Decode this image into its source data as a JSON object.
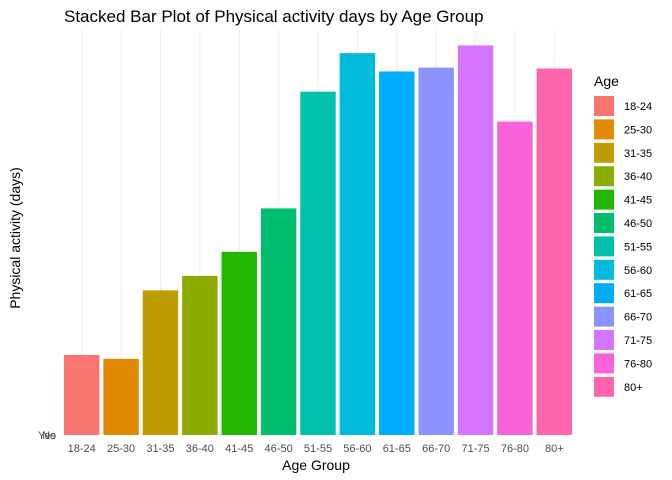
{
  "chart_data": {
    "type": "bar",
    "title": "Stacked Bar Plot of Physical activity days by Age Group",
    "xlabel": "Age Group",
    "ylabel": "Physical activity (days)",
    "y_tick_labels": [
      "No",
      "Yes"
    ],
    "categories": [
      "18-24",
      "25-30",
      "31-35",
      "36-40",
      "41-45",
      "46-50",
      "51-55",
      "56-60",
      "61-65",
      "66-70",
      "71-75",
      "76-80",
      "80+"
    ],
    "values": [
      83,
      79,
      150,
      165,
      190,
      235,
      356,
      396,
      377,
      381,
      404,
      325,
      380
    ],
    "ylim": [
      0,
      420
    ],
    "grid": true,
    "legend": {
      "title": "Age",
      "placement": "right",
      "entries": [
        "18-24",
        "25-30",
        "31-35",
        "36-40",
        "41-45",
        "46-50",
        "51-55",
        "56-60",
        "61-65",
        "66-70",
        "71-75",
        "76-80",
        "80+"
      ]
    },
    "colors": [
      "#F8766D",
      "#E18A00",
      "#BE9C00",
      "#8CAB00",
      "#24B700",
      "#00BE70",
      "#00C1AB",
      "#00BBDA",
      "#00ACFC",
      "#8B93FF",
      "#D575FE",
      "#F962DD",
      "#FF65AC"
    ]
  }
}
